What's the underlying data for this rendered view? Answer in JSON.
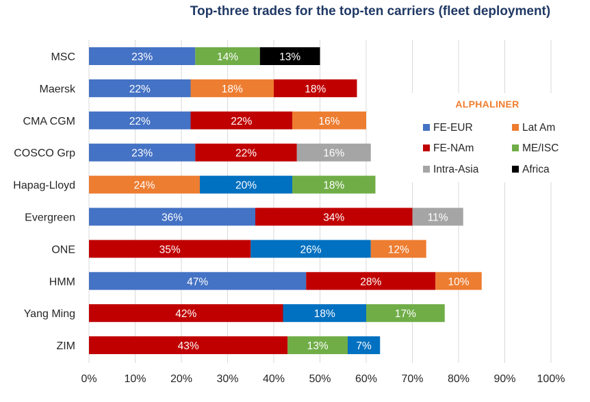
{
  "chart_data": {
    "type": "bar",
    "orientation": "horizontal",
    "stacked": true,
    "title": "Top-three trades for the top-ten carriers (fleet deployment)",
    "xlim": [
      0,
      100
    ],
    "xticks": [
      "0%",
      "10%",
      "20%",
      "30%",
      "40%",
      "50%",
      "60%",
      "70%",
      "80%",
      "90%",
      "100%"
    ],
    "grid": "vertical",
    "legend_position": "right",
    "brand_label": "ALPHALINER",
    "trades": [
      {
        "name": "FE-EUR",
        "color": "#4472c4"
      },
      {
        "name": "Lat Am",
        "color": "#ed7d31"
      },
      {
        "name": "FE-NAm",
        "color": "#c00000"
      },
      {
        "name": "ME/ISC",
        "color": "#70ad47"
      },
      {
        "name": "Intra-Asia",
        "color": "#a5a5a5"
      },
      {
        "name": "Africa",
        "color": "#000000"
      }
    ],
    "extra_colors": {
      "FE-NAm-alt": "#0070c0"
    },
    "carriers": [
      {
        "name": "MSC",
        "segments": [
          {
            "trade": "FE-EUR",
            "value": 23,
            "label": "23%"
          },
          {
            "trade": "ME/ISC",
            "value": 14,
            "label": "14%"
          },
          {
            "trade": "Africa",
            "value": 13,
            "label": "13%"
          }
        ]
      },
      {
        "name": "Maersk",
        "segments": [
          {
            "trade": "FE-EUR",
            "value": 22,
            "label": "22%"
          },
          {
            "trade": "Lat Am",
            "value": 18,
            "label": "18%"
          },
          {
            "trade": "FE-NAm",
            "value": 18,
            "label": "18%"
          }
        ]
      },
      {
        "name": "CMA CGM",
        "segments": [
          {
            "trade": "FE-EUR",
            "value": 22,
            "label": "22%"
          },
          {
            "trade": "FE-NAm",
            "value": 22,
            "label": "22%"
          },
          {
            "trade": "Lat Am",
            "value": 16,
            "label": "16%"
          }
        ]
      },
      {
        "name": "COSCO Grp",
        "segments": [
          {
            "trade": "FE-EUR",
            "value": 23,
            "label": "23%"
          },
          {
            "trade": "FE-NAm",
            "value": 22,
            "label": "22%"
          },
          {
            "trade": "Intra-Asia",
            "value": 16,
            "label": "16%"
          }
        ]
      },
      {
        "name": "Hapag-Lloyd",
        "segments": [
          {
            "trade": "Lat Am",
            "value": 24,
            "label": "24%"
          },
          {
            "trade": "FE-NAm-alt",
            "value": 20,
            "label": "20%"
          },
          {
            "trade": "ME/ISC",
            "value": 18,
            "label": "18%"
          }
        ]
      },
      {
        "name": "Evergreen",
        "segments": [
          {
            "trade": "FE-EUR",
            "value": 36,
            "label": "36%"
          },
          {
            "trade": "FE-NAm",
            "value": 34,
            "label": "34%"
          },
          {
            "trade": "Intra-Asia",
            "value": 11,
            "label": "11%"
          }
        ]
      },
      {
        "name": "ONE",
        "segments": [
          {
            "trade": "FE-NAm",
            "value": 35,
            "label": "35%"
          },
          {
            "trade": "FE-NAm-alt",
            "value": 26,
            "label": "26%"
          },
          {
            "trade": "Lat Am",
            "value": 12,
            "label": "12%"
          }
        ]
      },
      {
        "name": "HMM",
        "segments": [
          {
            "trade": "FE-EUR",
            "value": 47,
            "label": "47%"
          },
          {
            "trade": "FE-NAm",
            "value": 28,
            "label": "28%"
          },
          {
            "trade": "Lat Am",
            "value": 10,
            "label": "10%"
          }
        ]
      },
      {
        "name": "Yang Ming",
        "segments": [
          {
            "trade": "FE-NAm",
            "value": 42,
            "label": "42%"
          },
          {
            "trade": "FE-NAm-alt",
            "value": 18,
            "label": "18%"
          },
          {
            "trade": "ME/ISC",
            "value": 17,
            "label": "17%"
          }
        ]
      },
      {
        "name": "ZIM",
        "segments": [
          {
            "trade": "FE-NAm",
            "value": 43,
            "label": "43%"
          },
          {
            "trade": "ME/ISC",
            "value": 13,
            "label": "13%"
          },
          {
            "trade": "FE-NAm-alt",
            "value": 7,
            "label": "7%"
          }
        ]
      }
    ]
  }
}
